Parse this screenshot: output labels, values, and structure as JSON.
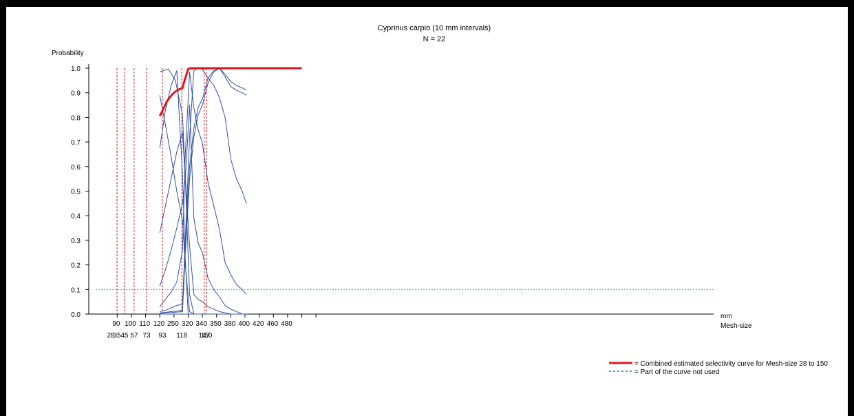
{
  "chart_data": {
    "type": "line",
    "title": "Cyprinus carpio (10 mm intervals)",
    "subtitle": "N = 22",
    "ylabel": "Probability",
    "ylim": [
      0,
      1
    ],
    "yticks": [
      "0.0",
      "0.1",
      "0.2",
      "0.3",
      "0.4",
      "0.5",
      "0.6",
      "0.7",
      "0.8",
      "0.9",
      "1.0"
    ],
    "x_unit_label": "mm",
    "mesh_label": "Mesh-size",
    "xlim": [
      60,
      500
    ],
    "length_ticks": [
      {
        "x": 90,
        "label": "90"
      },
      {
        "x": 100,
        "label": "100"
      },
      {
        "x": 110,
        "label": "110"
      },
      {
        "x": 120,
        "label": "120"
      },
      {
        "x": 130,
        "label": "250"
      },
      {
        "x": 140,
        "label": "320"
      },
      {
        "x": 150,
        "label": "340"
      },
      {
        "x": 160,
        "label": "350"
      },
      {
        "x": 170,
        "label": "380"
      },
      {
        "x": 180,
        "label": "400"
      },
      {
        "x": 190,
        "label": "420"
      },
      {
        "x": 200,
        "label": "460"
      },
      {
        "x": 210,
        "label": "480"
      }
    ],
    "extra_ticks": [
      80,
      220
    ],
    "mesh_sizes": [
      {
        "x": 75.6,
        "label": "28"
      },
      {
        "x": 79.9,
        "label": "35"
      },
      {
        "x": 85.2,
        "label": "45"
      },
      {
        "x": 91.9,
        "label": "57"
      },
      {
        "x": 100.7,
        "label": "73"
      },
      {
        "x": 111.8,
        "label": "93"
      },
      {
        "x": 125.5,
        "label": "118"
      },
      {
        "x": 141.3,
        "label": "147"
      },
      {
        "x": 142.9,
        "label": "150"
      }
    ],
    "reference_line": 0.1,
    "series": [
      {
        "name": "Combined estimated selectivity curve for Mesh-size 28 to 150",
        "color": "#e8141c",
        "width": 3,
        "x": [
          110,
          113,
          115,
          117,
          119,
          121,
          123,
          126,
          128,
          130,
          132,
          134,
          136,
          140,
          145,
          150,
          155,
          160,
          170,
          180,
          190,
          200,
          210
        ],
        "y": [
          0.805,
          0.84,
          0.865,
          0.88,
          0.895,
          0.905,
          0.912,
          0.92,
          0.96,
          0.997,
          1.0,
          1.0,
          1.0,
          1.0,
          1.0,
          1.0,
          1.0,
          1.0,
          1.0,
          1.0,
          1.0,
          1.0,
          1.0
        ]
      },
      {
        "color": "#3050a0",
        "width": 1,
        "x": [
          110,
          116,
          121,
          126,
          128,
          131,
          134,
          137,
          140,
          143,
          146,
          149,
          152,
          155,
          160,
          164,
          167,
          171
        ],
        "y": [
          0.985,
          0.997,
          0.95,
          0.81,
          0.55,
          0.08,
          0.0,
          0.0,
          0.0,
          0.0,
          0.0,
          0.0,
          0.0,
          0.0,
          0.0,
          0.0,
          0.0,
          0.0
        ]
      },
      {
        "color": "#3050a0",
        "width": 1,
        "x": [
          110,
          114,
          118,
          122,
          126,
          128,
          130,
          131
        ],
        "y": [
          0.675,
          0.83,
          0.93,
          0.99,
          0.57,
          0.22,
          0.0,
          0.0
        ]
      },
      {
        "color": "#3050a0",
        "width": 1,
        "x": [
          110,
          114,
          118,
          122,
          126,
          128,
          131,
          134,
          137,
          140,
          144,
          148,
          152,
          156,
          160,
          164,
          168,
          171
        ],
        "y": [
          0.33,
          0.44,
          0.55,
          0.66,
          0.74,
          0.55,
          0.28,
          0.08,
          0.06,
          0.05,
          0.03,
          0.02,
          0.01,
          0.005,
          0.0,
          0.0,
          0.0,
          0.0
        ]
      },
      {
        "color": "#3050a0",
        "width": 1,
        "x": [
          110,
          114,
          118,
          122,
          126,
          128,
          131,
          134,
          137,
          140,
          144,
          148,
          152,
          156,
          160,
          164,
          168,
          171
        ],
        "y": [
          0.89,
          0.77,
          0.64,
          0.5,
          0.38,
          0.2,
          0.01,
          0.0,
          0.0,
          0.0,
          0.0,
          0.0,
          0.0,
          0.0,
          0.0,
          0.0,
          0.0,
          0.0
        ]
      },
      {
        "color": "#3050a0",
        "width": 1,
        "x": [
          110,
          114,
          118,
          122,
          126,
          128,
          131,
          134,
          137,
          140,
          144,
          148,
          152,
          156,
          160,
          164,
          168,
          171
        ],
        "y": [
          0.115,
          0.18,
          0.26,
          0.35,
          0.45,
          0.55,
          0.85,
          0.39,
          0.29,
          0.25,
          0.145,
          0.1,
          0.07,
          0.035,
          0.02,
          0.01,
          0.0,
          0.0
        ]
      },
      {
        "color": "#3050a0",
        "width": 1,
        "x": [
          110,
          114,
          118,
          122,
          126,
          128,
          131,
          134,
          137,
          140,
          144,
          148,
          152,
          156,
          160,
          164,
          168,
          171
        ],
        "y": [
          0.03,
          0.06,
          0.09,
          0.13,
          0.26,
          0.65,
          0.985,
          0.84,
          0.75,
          0.695,
          0.535,
          0.44,
          0.345,
          0.21,
          0.16,
          0.12,
          0.1,
          0.08
        ]
      },
      {
        "color": "#3050a0",
        "width": 1,
        "x": [
          110,
          114,
          118,
          122,
          126,
          128,
          131,
          134,
          137,
          140,
          144,
          148,
          152,
          156,
          160,
          164,
          168,
          171
        ],
        "y": [
          0.01,
          0.015,
          0.025,
          0.035,
          0.04,
          0.3,
          0.72,
          0.99,
          1.0,
          0.995,
          0.96,
          0.93,
          0.88,
          0.8,
          0.63,
          0.55,
          0.5,
          0.45
        ]
      },
      {
        "color": "#3050a0",
        "width": 1,
        "x": [
          110,
          114,
          118,
          122,
          126,
          128,
          131,
          134,
          137,
          140,
          144,
          148,
          152,
          156,
          160,
          164,
          168,
          171
        ],
        "y": [
          0.005,
          0.007,
          0.01,
          0.012,
          0.015,
          0.3,
          0.6,
          0.755,
          0.84,
          0.875,
          0.96,
          0.99,
          1.0,
          0.975,
          0.945,
          0.93,
          0.92,
          0.91
        ]
      },
      {
        "color": "#3050a0",
        "width": 1,
        "x": [
          110,
          114,
          118,
          122,
          126,
          128,
          131,
          134,
          137,
          140,
          144,
          148,
          152,
          156,
          160,
          164,
          168,
          171
        ],
        "y": [
          0.003,
          0.005,
          0.006,
          0.008,
          0.01,
          0.25,
          0.55,
          0.72,
          0.81,
          0.85,
          0.94,
          0.985,
          1.0,
          0.965,
          0.925,
          0.91,
          0.9,
          0.89
        ]
      },
      {
        "color": "#3050a0",
        "width": 1,
        "x": [
          110,
          114,
          118,
          122,
          126,
          128,
          131,
          134,
          137,
          140,
          144,
          148,
          152,
          156,
          160,
          164,
          168,
          171
        ],
        "y": [
          0.0,
          0.0,
          0.0,
          0.0,
          0.0,
          0.0,
          0.0,
          0.0,
          0.0,
          0.0,
          0.0,
          0.0,
          0.0,
          0.0,
          0.0,
          0.0,
          0.0,
          0.0
        ]
      }
    ],
    "legend": [
      {
        "label": "= Combined estimated selectivity curve for Mesh-size 28 to 150",
        "color": "#e8141c",
        "style": "solid"
      },
      {
        "label": "= Part of the curve not used",
        "color": "#1fb0c8",
        "style": "dotted"
      }
    ],
    "legend_position": "bottom-right"
  }
}
